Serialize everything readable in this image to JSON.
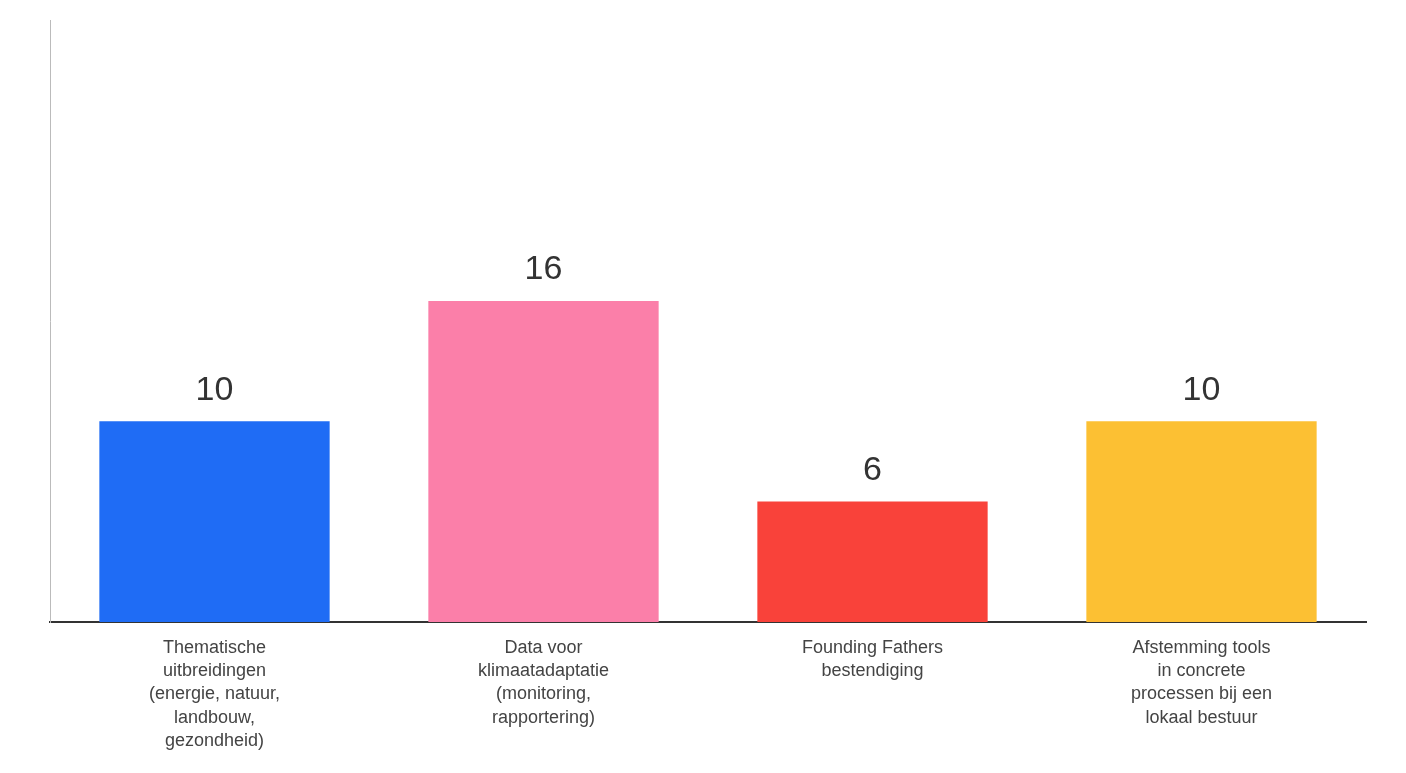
{
  "chart_data": {
    "type": "bar",
    "categories": [
      "Thematische uitbreidingen (energie, natuur, landbouw, gezondheid)",
      "Data voor klimaatadaptatie (monitoring, rapportering)",
      "Founding Fathers bestendiging",
      "Afstemming tools in concrete processen bij een lokaal bestuur"
    ],
    "values": [
      10,
      16,
      6,
      10
    ],
    "colors": [
      "#1f6cf5",
      "#fb7fa9",
      "#f9423a",
      "#fcc033"
    ],
    "ylim": [
      0,
      30
    ],
    "grid": false,
    "legend": false,
    "data_labels": true,
    "tick_labels": "x"
  }
}
